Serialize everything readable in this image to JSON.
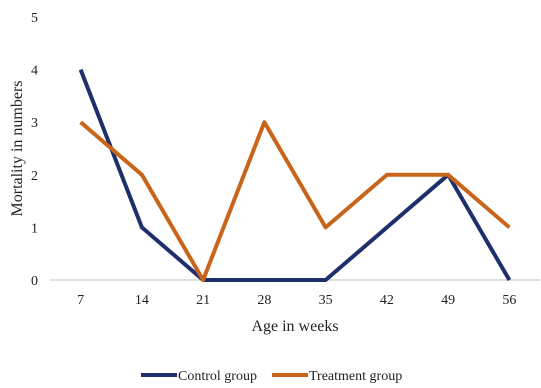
{
  "chart_data": {
    "type": "line",
    "xlabel": "Age in weeks",
    "ylabel": "Mortality in numbers",
    "categories": [
      "7",
      "14",
      "21",
      "28",
      "35",
      "42",
      "49",
      "56"
    ],
    "ylim": [
      0,
      5
    ],
    "yticks": [
      0,
      1,
      2,
      3,
      4,
      5
    ],
    "grid": false,
    "legend_position": "bottom",
    "series": [
      {
        "name": "Control group",
        "color": "#1F2F6B",
        "values": [
          4,
          1,
          0,
          0,
          0,
          1,
          2,
          0
        ]
      },
      {
        "name": "Treatment group",
        "color": "#C8651B",
        "values": [
          3,
          2,
          0,
          3,
          1,
          2,
          2,
          1
        ]
      }
    ]
  }
}
